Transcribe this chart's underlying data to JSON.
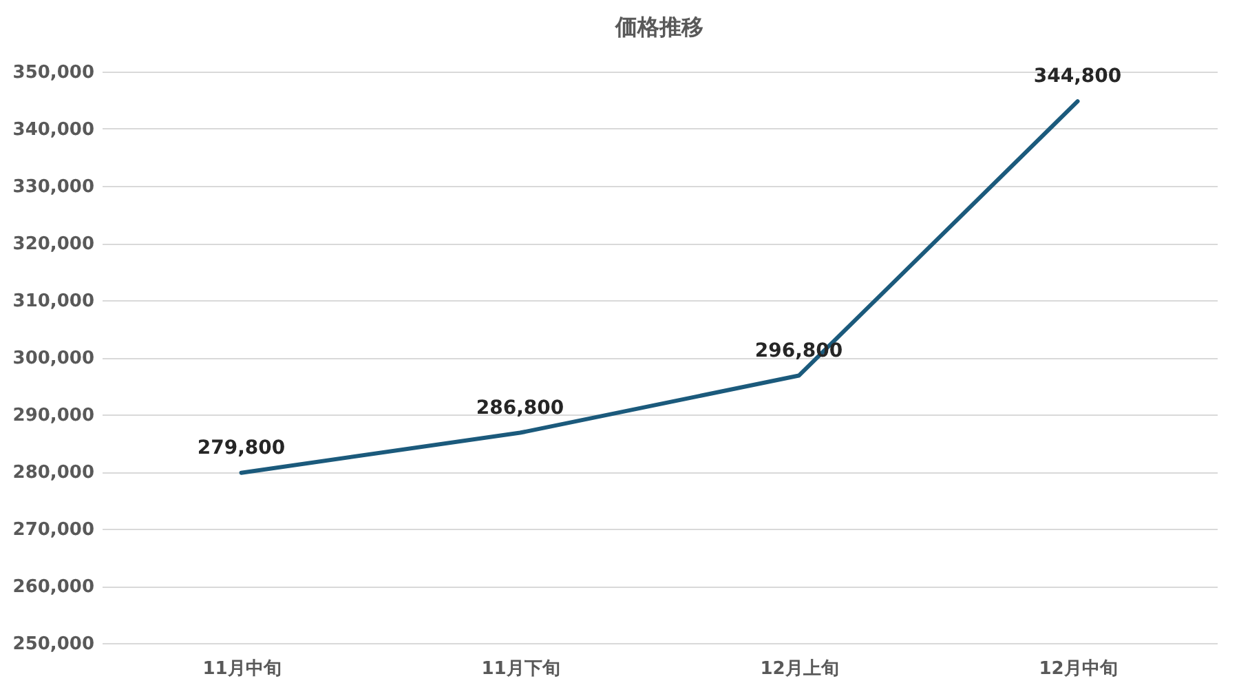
{
  "chart_data": {
    "type": "line",
    "title": "価格推移",
    "categories": [
      "11月中旬",
      "11月下旬",
      "12月上旬",
      "12月中旬"
    ],
    "series": [
      {
        "color": "#1b5a7c",
        "values": [
          279800,
          286800,
          296800,
          344800
        ],
        "value_labels": [
          "279,800",
          "286,800",
          "296,800",
          "344,800"
        ]
      }
    ],
    "ylim": [
      250000,
      350000
    ],
    "yticks": [
      {
        "value": 250000,
        "label": "250,000"
      },
      {
        "value": 260000,
        "label": "260,000"
      },
      {
        "value": 270000,
        "label": "270,000"
      },
      {
        "value": 280000,
        "label": "280,000"
      },
      {
        "value": 290000,
        "label": "290,000"
      },
      {
        "value": 300000,
        "label": "300,000"
      },
      {
        "value": 310000,
        "label": "310,000"
      },
      {
        "value": 320000,
        "label": "320,000"
      },
      {
        "value": 330000,
        "label": "330,000"
      },
      {
        "value": 340000,
        "label": "340,000"
      },
      {
        "value": 350000,
        "label": "350,000"
      }
    ],
    "grid": "y"
  }
}
